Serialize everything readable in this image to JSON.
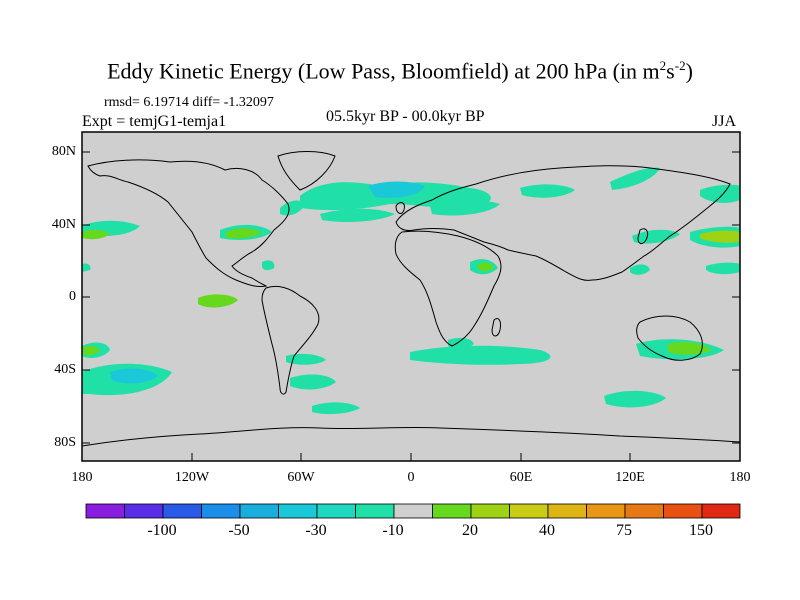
{
  "title": {
    "main": "Eddy Kinetic Energy (Low Pass, Bloomfield) at 200 hPa (in m",
    "exp1": "2",
    "mid": "s",
    "exp2": "-2",
    "end": ")"
  },
  "stats": "rmsd= 6.19714 diff= -1.32097",
  "experiment": "Expt = temjG1-temja1",
  "period": "05.5kyr BP - 00.0kyr BP",
  "season": "JJA",
  "axes": {
    "lat_labels": [
      "80N",
      "40N",
      "0",
      "40S",
      "80S"
    ],
    "lat_values": [
      80,
      40,
      0,
      -40,
      -80
    ],
    "lon_labels": [
      "180",
      "120W",
      "60W",
      "0",
      "60E",
      "120E",
      "180"
    ],
    "lon_values": [
      -180,
      -120,
      -60,
      0,
      60,
      120,
      180
    ]
  },
  "colorbar": {
    "labels": [
      "-100",
      "-50",
      "-30",
      "-10",
      "20",
      "40",
      "75",
      "150"
    ],
    "colors": [
      "#8a1ee0",
      "#5a2ee8",
      "#2a5ae8",
      "#1a8ee8",
      "#1aaedc",
      "#1ac8d8",
      "#1ed8c0",
      "#20e0a8",
      "#cfcfcf",
      "#66d81e",
      "#9ed214",
      "#c8cc14",
      "#dcb414",
      "#e89614",
      "#e87814",
      "#e85014",
      "#e02814"
    ]
  },
  "map_colors": {
    "land_background": "#cfcfcf",
    "teal": "#20e0a8",
    "cyan": "#1ac8d8",
    "light_green": "#66d81e",
    "yellow_green": "#9ed214"
  }
}
